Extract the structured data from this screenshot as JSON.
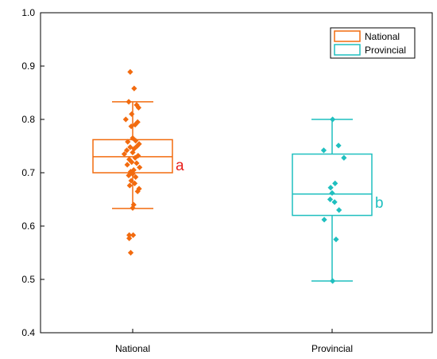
{
  "chart_data": {
    "type": "box",
    "title": "",
    "xlabel": "",
    "ylabel": "",
    "ylim": [
      0.4,
      1.0
    ],
    "yticks": [
      "0.4",
      "0.5",
      "0.6",
      "0.7",
      "0.8",
      "0.9",
      "1.0"
    ],
    "grid": false,
    "legend_position": "top-right",
    "categories": [
      "National",
      "Provincial"
    ],
    "series": [
      {
        "name": "National",
        "color": "#f26b0f",
        "letter": "a",
        "letter_color": "#e8201c",
        "box": {
          "whisker_low": 0.633,
          "q1": 0.7,
          "median": 0.73,
          "q3": 0.762,
          "whisker_high": 0.833
        },
        "points": [
          {
            "x": -0.05,
            "y": 0.889
          },
          {
            "x": 0.03,
            "y": 0.858
          },
          {
            "x": -0.08,
            "y": 0.833
          },
          {
            "x": 0.08,
            "y": 0.827
          },
          {
            "x": 0.12,
            "y": 0.822
          },
          {
            "x": -0.02,
            "y": 0.81
          },
          {
            "x": -0.14,
            "y": 0.8
          },
          {
            "x": 0.1,
            "y": 0.795
          },
          {
            "x": 0.05,
            "y": 0.79
          },
          {
            "x": -0.03,
            "y": 0.787
          },
          {
            "x": 0.0,
            "y": 0.765
          },
          {
            "x": 0.06,
            "y": 0.76
          },
          {
            "x": -0.1,
            "y": 0.758
          },
          {
            "x": 0.13,
            "y": 0.754
          },
          {
            "x": 0.09,
            "y": 0.75
          },
          {
            "x": -0.05,
            "y": 0.748
          },
          {
            "x": 0.03,
            "y": 0.745
          },
          {
            "x": -0.12,
            "y": 0.742
          },
          {
            "x": 0.0,
            "y": 0.738
          },
          {
            "x": -0.17,
            "y": 0.735
          },
          {
            "x": 0.11,
            "y": 0.732
          },
          {
            "x": 0.05,
            "y": 0.728
          },
          {
            "x": -0.07,
            "y": 0.725
          },
          {
            "x": -0.02,
            "y": 0.72
          },
          {
            "x": 0.08,
            "y": 0.718
          },
          {
            "x": -0.11,
            "y": 0.715
          },
          {
            "x": 0.14,
            "y": 0.71
          },
          {
            "x": 0.02,
            "y": 0.705
          },
          {
            "x": -0.04,
            "y": 0.702
          },
          {
            "x": 0.0,
            "y": 0.698
          },
          {
            "x": -0.08,
            "y": 0.695
          },
          {
            "x": 0.06,
            "y": 0.692
          },
          {
            "x": -0.03,
            "y": 0.685
          },
          {
            "x": 0.04,
            "y": 0.68
          },
          {
            "x": -0.06,
            "y": 0.676
          },
          {
            "x": 0.13,
            "y": 0.67
          },
          {
            "x": 0.1,
            "y": 0.665
          },
          {
            "x": 0.02,
            "y": 0.64
          },
          {
            "x": 0.0,
            "y": 0.634
          },
          {
            "x": -0.07,
            "y": 0.583
          },
          {
            "x": 0.01,
            "y": 0.583
          },
          {
            "x": -0.07,
            "y": 0.577
          },
          {
            "x": -0.04,
            "y": 0.55
          }
        ]
      },
      {
        "name": "Provincial",
        "color": "#1fbfbf",
        "letter": "b",
        "letter_color": "#1fbfbf",
        "box": {
          "whisker_low": 0.497,
          "q1": 0.62,
          "median": 0.66,
          "q3": 0.735,
          "whisker_high": 0.8
        },
        "points": [
          {
            "x": 0.01,
            "y": 0.8
          },
          {
            "x": 0.13,
            "y": 0.751
          },
          {
            "x": -0.17,
            "y": 0.742
          },
          {
            "x": 0.24,
            "y": 0.728
          },
          {
            "x": 0.06,
            "y": 0.68
          },
          {
            "x": -0.03,
            "y": 0.672
          },
          {
            "x": 0.0,
            "y": 0.662
          },
          {
            "x": -0.04,
            "y": 0.65
          },
          {
            "x": 0.05,
            "y": 0.645
          },
          {
            "x": 0.14,
            "y": 0.63
          },
          {
            "x": -0.16,
            "y": 0.612
          },
          {
            "x": 0.08,
            "y": 0.575
          },
          {
            "x": 0.01,
            "y": 0.497
          }
        ]
      }
    ]
  }
}
